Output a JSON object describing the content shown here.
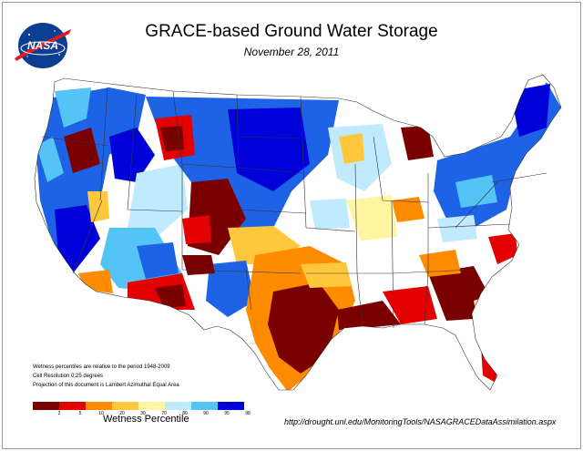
{
  "title": "GRACE-based Ground Water Storage",
  "date": "November 28, 2011",
  "logo_text": "NASA",
  "notes": [
    "Wetness percentiles are relative to the period 1948-2009",
    "Cell Resolution 0.25 degrees",
    "Projection of this document is Lambert Azimuthal Equal Area"
  ],
  "legend": {
    "label": "Wetness Percentile",
    "ticks": [
      "2",
      "5",
      "10",
      "20",
      "30",
      "70",
      "80",
      "90",
      "95",
      "98"
    ],
    "colors": [
      "#7a0000",
      "#e30000",
      "#ff8c00",
      "#ffc83c",
      "#fff5a0",
      "#ffffff",
      "#bfeaff",
      "#54c3f5",
      "#1e63e6",
      "#0000d8"
    ]
  },
  "source_url": "http://drought.unl.edu/MonitoringTools/NASAGRACEDataAssimilation.aspx",
  "colors": {
    "background": "#ffffff",
    "border": "#9a9a9a",
    "state_lines": "#333333"
  }
}
